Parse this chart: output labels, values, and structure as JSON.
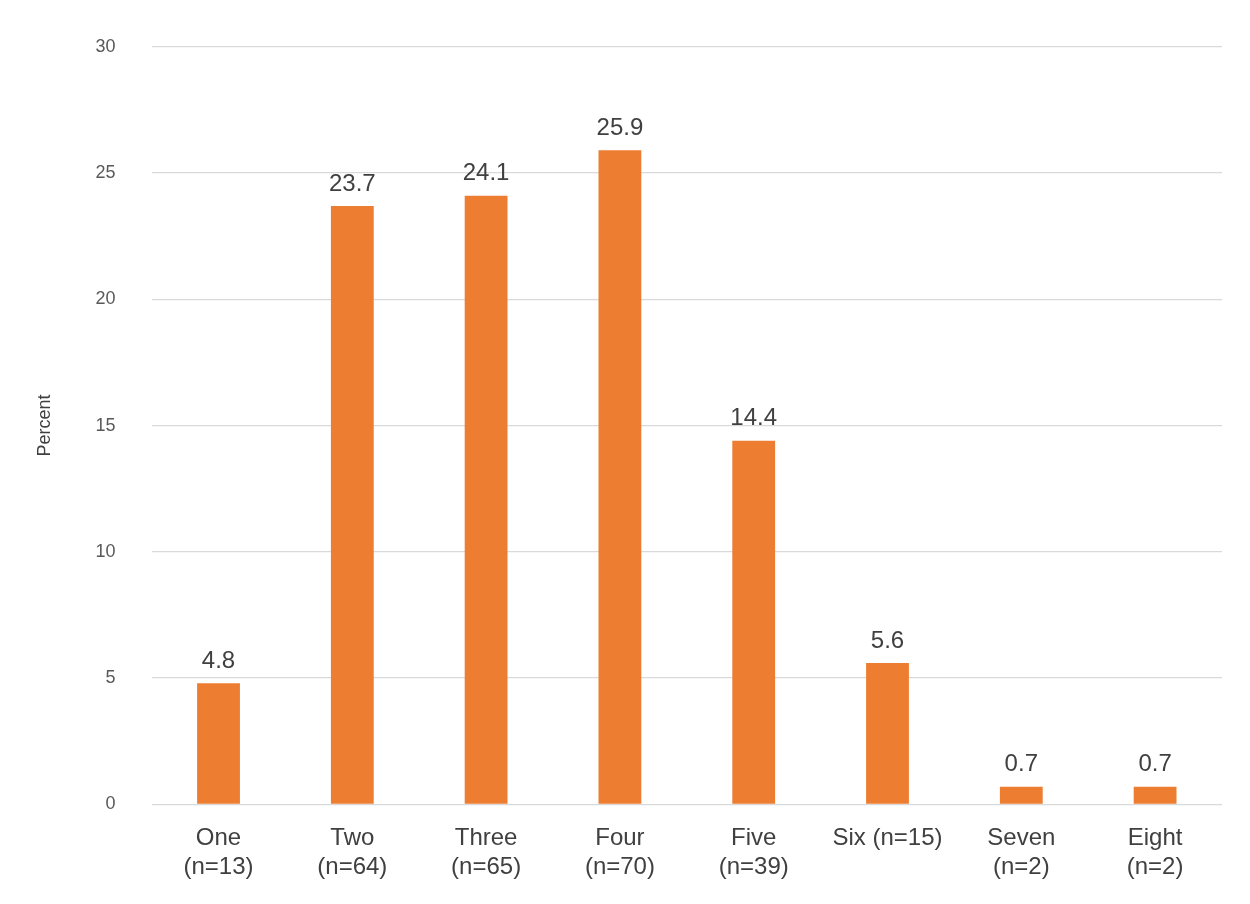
{
  "chart_data": {
    "type": "bar",
    "ylabel": "Percent",
    "categories": [
      "One\n(n=13)",
      "Two\n(n=64)",
      "Three\n(n=65)",
      "Four\n(n=70)",
      "Five\n(n=39)",
      "Six (n=15)",
      "Seven\n(n=2)",
      "Eight\n(n=2)"
    ],
    "values": [
      4.8,
      23.7,
      24.1,
      25.9,
      14.4,
      5.6,
      0.7,
      0.7
    ],
    "color": "#ed7d31",
    "ylim": [
      0,
      30
    ],
    "yticks": [
      0,
      5,
      10,
      15,
      20,
      25,
      30
    ],
    "grid": "y",
    "data_labels": true,
    "legend": false
  }
}
